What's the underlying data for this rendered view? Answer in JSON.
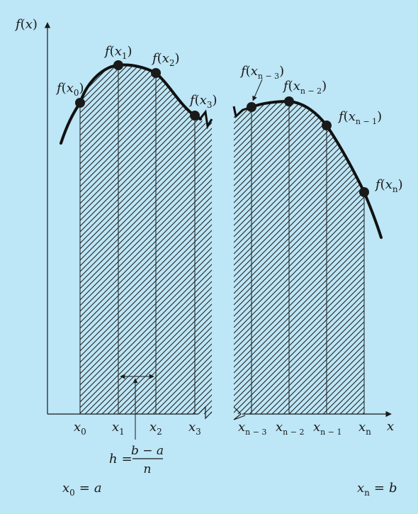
{
  "figure": {
    "background_color": "#bde6f6",
    "ink_color": "#1a1a1a",
    "y_axis_label": {
      "fn": "f",
      "open": "(",
      "var": "x",
      "close": ")"
    },
    "x_axis_label": "x",
    "left_panel": {
      "point_labels": [
        {
          "fn": "f",
          "open": "(",
          "var": "x",
          "sub": "0",
          "close": ")"
        },
        {
          "fn": "f",
          "open": "(",
          "var": "x",
          "sub": "1",
          "close": ")"
        },
        {
          "fn": "f",
          "open": "(",
          "var": "x",
          "sub": "2",
          "close": ")"
        },
        {
          "fn": "f",
          "open": "(",
          "var": "x",
          "sub": "3",
          "close": ")"
        }
      ],
      "tick_labels": [
        {
          "var": "x",
          "sub": "0"
        },
        {
          "var": "x",
          "sub": "1"
        },
        {
          "var": "x",
          "sub": "2"
        },
        {
          "var": "x",
          "sub": "3"
        }
      ]
    },
    "right_panel": {
      "point_labels": [
        {
          "fn": "f",
          "open": "(",
          "var": "x",
          "sub": "n − 3",
          "close": ")"
        },
        {
          "fn": "f",
          "open": "(",
          "var": "x",
          "sub": "n − 2",
          "close": ")"
        },
        {
          "fn": "f",
          "open": "(",
          "var": "x",
          "sub": "n − 1",
          "close": ")"
        },
        {
          "fn": "f",
          "open": "(",
          "var": "x",
          "sub": "n",
          "close": ")"
        }
      ],
      "tick_labels": [
        {
          "var": "x",
          "sub": "n − 3"
        },
        {
          "var": "x",
          "sub": "n − 2"
        },
        {
          "var": "x",
          "sub": "n − 1"
        },
        {
          "var": "x",
          "sub": "n"
        }
      ]
    },
    "step_formula": {
      "lhs": "h",
      "equals": "=",
      "numerator": "b − a",
      "denominator": "n"
    },
    "lower_bound": {
      "var": "x",
      "sub": "0",
      "equals": "=",
      "value": "a"
    },
    "upper_bound": {
      "var": "x",
      "sub": "n",
      "equals": "=",
      "value": "b"
    }
  }
}
